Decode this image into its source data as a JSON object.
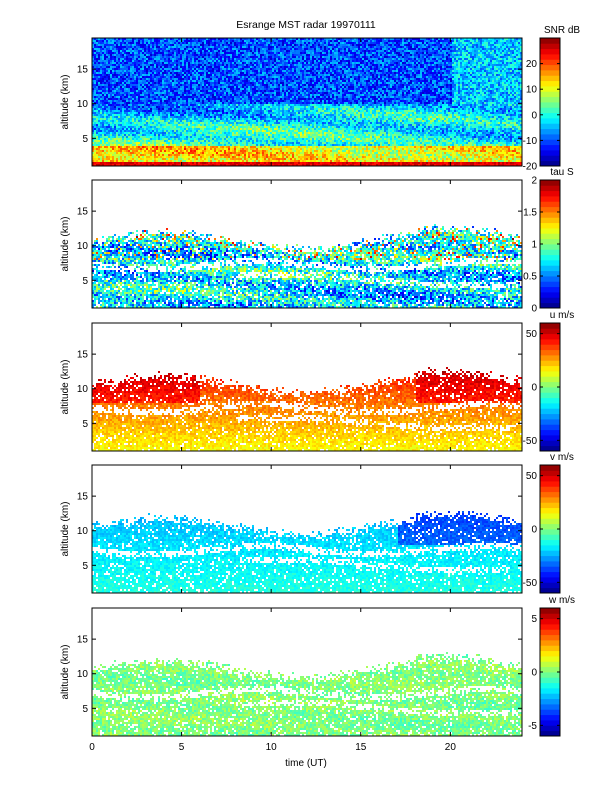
{
  "chart_data": {
    "type": "heatmap",
    "title": "Esrange MST radar 19970111",
    "xlabel": "time (UT)",
    "xlim": [
      0,
      24
    ],
    "xticks": [
      0,
      5,
      10,
      15,
      20
    ],
    "panels": [
      {
        "ylabel": "altitude (km)",
        "ylim": [
          1,
          19.5
        ],
        "yticks": [
          5,
          10,
          15
        ],
        "colorbar_label": "SNR dB",
        "clim": [
          -20,
          30
        ],
        "cticks": [
          -20,
          -10,
          0,
          10,
          20
        ]
      },
      {
        "ylabel": "altitude (km)",
        "ylim": [
          1,
          19.5
        ],
        "yticks": [
          5,
          10,
          15
        ],
        "colorbar_label": "tau S",
        "clim": [
          0,
          2
        ],
        "cticks": [
          0,
          0.5,
          1,
          1.5,
          2
        ]
      },
      {
        "ylabel": "altitude (km)",
        "ylim": [
          1,
          19.5
        ],
        "yticks": [
          5,
          10,
          15
        ],
        "colorbar_label": "u m/s",
        "clim": [
          -60,
          60
        ],
        "cticks": [
          -50,
          0,
          50
        ]
      },
      {
        "ylabel": "altitude (km)",
        "ylim": [
          1,
          19.5
        ],
        "yticks": [
          5,
          10,
          15
        ],
        "colorbar_label": "v m/s",
        "clim": [
          -60,
          60
        ],
        "cticks": [
          -50,
          0,
          50
        ]
      },
      {
        "ylabel": "altitude (km)",
        "ylim": [
          1,
          19.5
        ],
        "yticks": [
          5,
          10,
          15
        ],
        "colorbar_label": "w m/s",
        "clim": [
          -6,
          6
        ],
        "cticks": [
          -5,
          0,
          5
        ]
      }
    ]
  }
}
